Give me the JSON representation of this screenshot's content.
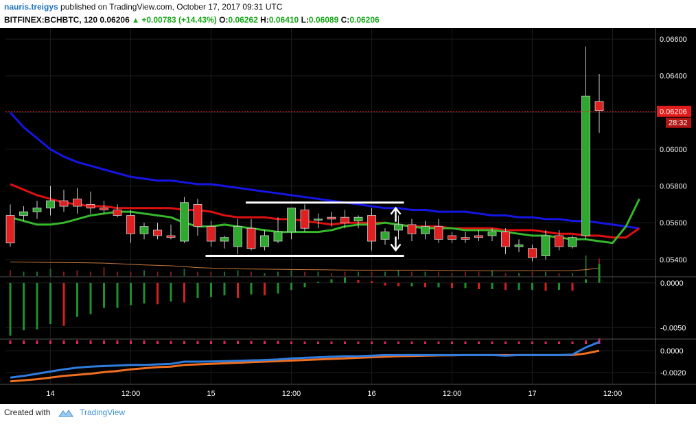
{
  "header": {
    "user": "nauris.treigys",
    "published_text": "published on TradingView.com, October 17, 2017 09:31 UTC",
    "symbol": "BITFINEX:BCHBTC, 120",
    "last": "0.06206",
    "change": "+0.00783 (+14.43%)",
    "o_label": "O:",
    "o_value": "0.06262",
    "h_label": "H:",
    "h_value": "0.06410",
    "l_label": "L:",
    "l_value": "0.06089",
    "c_label": "C:",
    "c_value": "0.06206"
  },
  "footer": {
    "created_with": "Created with",
    "brand": "TradingView"
  },
  "colors": {
    "background": "#000000",
    "up": "#2ea82e",
    "down": "#e02020",
    "ma_blue": "#1515e6",
    "ma_red": "#e01010",
    "ma_green": "#36b82c",
    "price_label": "#e21b1b"
  },
  "chart_data": {
    "type": "candlestick",
    "price_axis": {
      "ticks": [
        "0.06600",
        "0.06400",
        "0.06200",
        "0.06000",
        "0.05800",
        "0.05600",
        "0.05400"
      ],
      "tick_values": [
        0.066,
        0.064,
        0.062,
        0.06,
        0.058,
        0.056,
        0.054
      ],
      "range": [
        0.0531,
        0.0666
      ],
      "last_price_label": "0.06206",
      "last_price": 0.06206,
      "countdown_label": "28:32"
    },
    "time_axis": {
      "labels": [
        "14",
        "12:00",
        "15",
        "12:00",
        "16",
        "12:00",
        "17",
        "12:00"
      ],
      "label_index": [
        3,
        9,
        15,
        21,
        27,
        33,
        39,
        45
      ]
    },
    "candles": [
      [
        0.0564,
        0.057,
        0.0547,
        0.0549
      ],
      [
        0.0564,
        0.0569,
        0.0561,
        0.0566
      ],
      [
        0.0566,
        0.0572,
        0.0562,
        0.0568
      ],
      [
        0.0568,
        0.058,
        0.0564,
        0.0572
      ],
      [
        0.0572,
        0.0578,
        0.0566,
        0.0569
      ],
      [
        0.0573,
        0.0579,
        0.0565,
        0.0569
      ],
      [
        0.057,
        0.0577,
        0.0565,
        0.0568
      ],
      [
        0.0568,
        0.0572,
        0.0565,
        0.0567
      ],
      [
        0.0567,
        0.057,
        0.0563,
        0.0564
      ],
      [
        0.0564,
        0.0567,
        0.0549,
        0.0554
      ],
      [
        0.0554,
        0.056,
        0.0551,
        0.0558
      ],
      [
        0.0556,
        0.056,
        0.0551,
        0.0553
      ],
      [
        0.0553,
        0.0559,
        0.0551,
        0.0552
      ],
      [
        0.055,
        0.0574,
        0.0549,
        0.0571
      ],
      [
        0.057,
        0.0573,
        0.0553,
        0.0558
      ],
      [
        0.0558,
        0.0561,
        0.0547,
        0.055
      ],
      [
        0.055,
        0.0553,
        0.0546,
        0.0552
      ],
      [
        0.0547,
        0.0562,
        0.0543,
        0.0558
      ],
      [
        0.0557,
        0.0562,
        0.0545,
        0.0546
      ],
      [
        0.0547,
        0.0556,
        0.0545,
        0.0553
      ],
      [
        0.055,
        0.0563,
        0.0549,
        0.0555
      ],
      [
        0.0555,
        0.0568,
        0.0551,
        0.0568
      ],
      [
        0.0567,
        0.057,
        0.0555,
        0.0557
      ],
      [
        0.0562,
        0.0565,
        0.0557,
        0.0562
      ],
      [
        0.0563,
        0.0566,
        0.0558,
        0.0562
      ],
      [
        0.0563,
        0.0567,
        0.0557,
        0.056
      ],
      [
        0.0561,
        0.0564,
        0.0557,
        0.0563
      ],
      [
        0.0564,
        0.0568,
        0.0545,
        0.055
      ],
      [
        0.0551,
        0.0557,
        0.0548,
        0.0555
      ],
      [
        0.0556,
        0.0564,
        0.0551,
        0.0559
      ],
      [
        0.0559,
        0.0562,
        0.055,
        0.0554
      ],
      [
        0.0554,
        0.0561,
        0.0551,
        0.0558
      ],
      [
        0.0558,
        0.0562,
        0.0549,
        0.0551
      ],
      [
        0.0553,
        0.0555,
        0.0549,
        0.0551
      ],
      [
        0.0552,
        0.0555,
        0.0549,
        0.0551
      ],
      [
        0.0553,
        0.0556,
        0.055,
        0.0552
      ],
      [
        0.0553,
        0.0557,
        0.055,
        0.0555
      ],
      [
        0.0555,
        0.0557,
        0.0543,
        0.0547
      ],
      [
        0.0547,
        0.0551,
        0.0544,
        0.0548
      ],
      [
        0.0546,
        0.0548,
        0.0539,
        0.0541
      ],
      [
        0.0542,
        0.0556,
        0.054,
        0.0553
      ],
      [
        0.0553,
        0.0556,
        0.0545,
        0.0547
      ],
      [
        0.0547,
        0.0553,
        0.0546,
        0.0552
      ],
      [
        0.0553,
        0.0656,
        0.0551,
        0.0629
      ],
      [
        0.0626,
        0.0641,
        0.0609,
        0.0621
      ]
    ],
    "ma_blue": [
      0.062,
      0.0612,
      0.0606,
      0.06,
      0.0596,
      0.0593,
      0.0591,
      0.0589,
      0.0587,
      0.0585,
      0.0584,
      0.0583,
      0.0583,
      0.0582,
      0.0581,
      0.0581,
      0.058,
      0.0579,
      0.0578,
      0.0577,
      0.0576,
      0.0575,
      0.0574,
      0.0573,
      0.0572,
      0.0571,
      0.057,
      0.0569,
      0.0568,
      0.0568,
      0.0567,
      0.0567,
      0.0566,
      0.0566,
      0.0566,
      0.0565,
      0.0564,
      0.0564,
      0.0563,
      0.0563,
      0.0562,
      0.0562,
      0.0561,
      0.0561,
      0.056,
      0.0559,
      0.0558,
      0.0557
    ],
    "ma_red": [
      0.0581,
      0.0578,
      0.0575,
      0.0573,
      0.0571,
      0.057,
      0.0569,
      0.0569,
      0.0568,
      0.0568,
      0.0568,
      0.0568,
      0.0568,
      0.0567,
      0.0567,
      0.0566,
      0.0564,
      0.0563,
      0.0563,
      0.0563,
      0.0562,
      0.0562,
      0.0561,
      0.056,
      0.0559,
      0.056,
      0.056,
      0.056,
      0.056,
      0.0559,
      0.0558,
      0.0558,
      0.0558,
      0.0557,
      0.0557,
      0.0557,
      0.0557,
      0.0556,
      0.0556,
      0.0556,
      0.0555,
      0.0554,
      0.0554,
      0.0553,
      0.0553,
      0.0552,
      0.0552,
      0.0557
    ],
    "ma_green": [
      0.0563,
      0.0561,
      0.0559,
      0.0559,
      0.056,
      0.0562,
      0.0564,
      0.0565,
      0.0566,
      0.0566,
      0.0565,
      0.0564,
      0.0563,
      0.056,
      0.0558,
      0.0558,
      0.0559,
      0.0558,
      0.0557,
      0.0556,
      0.0555,
      0.0555,
      0.0555,
      0.0555,
      0.0556,
      0.0558,
      0.0559,
      0.0559,
      0.056,
      0.0559,
      0.0558,
      0.0557,
      0.0557,
      0.0557,
      0.0556,
      0.0556,
      0.0556,
      0.0555,
      0.0554,
      0.0553,
      0.0553,
      0.0552,
      0.0551,
      0.0551,
      0.055,
      0.0549,
      0.0558,
      0.0573
    ],
    "range_lines": {
      "upper": {
        "from": 18,
        "to": 29,
        "price": 0.0571
      },
      "lower": {
        "from": 15,
        "to": 29,
        "price": 0.0542
      }
    },
    "volume": [
      4,
      3,
      3,
      5,
      3,
      4,
      3,
      6,
      3,
      3,
      4,
      3,
      3,
      5,
      3,
      3,
      3,
      4,
      3,
      2,
      3,
      4,
      3,
      3,
      2,
      3,
      3,
      3,
      3,
      4,
      3,
      3,
      3,
      2,
      3,
      3,
      4,
      2,
      2,
      3,
      3,
      2,
      2,
      14,
      12
    ],
    "volume_ma": [
      9.6,
      9.5,
      9.4,
      9.3,
      9.2,
      9.1,
      9.0,
      8.8,
      8.4,
      8.0,
      7.6,
      7.3,
      7.0,
      6.4,
      5.8,
      5.4,
      5.0,
      4.9,
      4.8,
      4.7,
      4.6,
      4.5,
      4.4,
      4.3,
      4.2,
      4.1,
      4.0,
      4.0,
      4.0,
      4.0,
      4.0,
      4.0,
      3.9,
      3.8,
      3.7,
      3.6,
      3.5,
      3.5,
      3.6,
      3.6,
      3.6,
      3.6,
      3.7,
      4.4,
      5.5
    ],
    "histogram_pane": {
      "ticks": [
        "0.0000",
        "-0.0050"
      ],
      "tick_values": [
        0.0,
        -0.005
      ],
      "range": [
        -0.0062,
        0.0006
      ],
      "values": [
        -0.0059,
        -0.0053,
        -0.0052,
        -0.0046,
        -0.0048,
        -0.0038,
        -0.0035,
        -0.0028,
        -0.0028,
        -0.0025,
        -0.0023,
        -0.0024,
        -0.0021,
        -0.0022,
        -0.0017,
        -0.0016,
        -0.0014,
        -0.0017,
        -0.0013,
        -0.0014,
        -0.0012,
        -0.0008,
        -0.0005,
        0.0001,
        0.0004,
        0.0006,
        0.0003,
        0.0002,
        -0.0003,
        -0.0004,
        -0.0004,
        -0.0005,
        -0.0005,
        -0.0006,
        -0.0006,
        -0.0007,
        -0.0007,
        -0.0008,
        -0.0008,
        -0.0008,
        -0.0009,
        -0.0008,
        -0.0009,
        0.0004,
        0.0021
      ]
    },
    "macd_pane": {
      "ticks": [
        "0.0000",
        "-0.0020"
      ],
      "tick_values": [
        0.0,
        -0.002
      ],
      "range": [
        -0.003,
        0.001
      ],
      "macd": [
        -0.00245,
        -0.0023,
        -0.0021,
        -0.0019,
        -0.0017,
        -0.00155,
        -0.00145,
        -0.0014,
        -0.00135,
        -0.0013,
        -0.0013,
        -0.00125,
        -0.0012,
        -0.001,
        -0.001,
        -0.00098,
        -0.00095,
        -0.00092,
        -0.00088,
        -0.00085,
        -0.0008,
        -0.0007,
        -0.00065,
        -0.0006,
        -0.00055,
        -0.0005,
        -0.0005,
        -0.00045,
        -0.0004,
        -0.0004,
        -0.0004,
        -0.0004,
        -0.0004,
        -0.0004,
        -0.0004,
        -0.0004,
        -0.0004,
        -0.00045,
        -0.0004,
        -0.0004,
        -0.0004,
        -0.0004,
        -0.00035,
        0.0003,
        0.0008
      ],
      "signal": [
        -0.0028,
        -0.0027,
        -0.0026,
        -0.00245,
        -0.0023,
        -0.0022,
        -0.0021,
        -0.00195,
        -0.00185,
        -0.0017,
        -0.0016,
        -0.0015,
        -0.00145,
        -0.0013,
        -0.00125,
        -0.0012,
        -0.00115,
        -0.0011,
        -0.00105,
        -0.001,
        -0.00095,
        -0.0009,
        -0.00085,
        -0.0008,
        -0.00075,
        -0.0007,
        -0.00065,
        -0.0006,
        -0.00055,
        -0.0005,
        -0.00048,
        -0.00045,
        -0.00043,
        -0.00042,
        -0.0004,
        -0.0004,
        -0.0004,
        -0.0004,
        -0.0004,
        -0.0004,
        -0.0004,
        -0.0004,
        -0.0004,
        -0.00025,
        0.0
      ],
      "bars": [
        2,
        2,
        2,
        2,
        2,
        2,
        2,
        2,
        2,
        2,
        2,
        1.5,
        1.5,
        1.5,
        1.5,
        1.5,
        1.5,
        1.5,
        1.5,
        1.5,
        1.5,
        1,
        1,
        1,
        1,
        1,
        1,
        1,
        1,
        1,
        1,
        1,
        1,
        1,
        1,
        1,
        1,
        1,
        1,
        1,
        1,
        1,
        1,
        2,
        4
      ]
    }
  }
}
